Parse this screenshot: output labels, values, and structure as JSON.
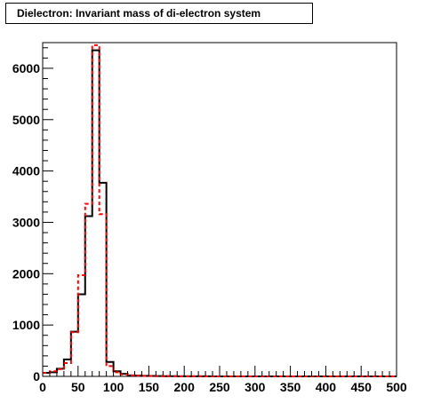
{
  "chart_data": {
    "type": "histogram",
    "title": "Dielectron: Invariant mass of di-electron system",
    "xlabel": "",
    "ylabel": "",
    "xlim": [
      0,
      500
    ],
    "ylim": [
      0,
      6500
    ],
    "bin_width": 10,
    "x_ticks": [
      0,
      50,
      100,
      150,
      200,
      250,
      300,
      350,
      400,
      450,
      500
    ],
    "y_ticks": [
      0,
      1000,
      2000,
      3000,
      4000,
      5000,
      6000
    ],
    "grid": false,
    "series": [
      {
        "style": "solid",
        "color": "#000000",
        "values": [
          70,
          80,
          150,
          330,
          870,
          1600,
          3120,
          6350,
          3770,
          280,
          100,
          50,
          20,
          15,
          10,
          8,
          6,
          5,
          4,
          3,
          3,
          2,
          2,
          2,
          1,
          1,
          1,
          1,
          1,
          1,
          1,
          1,
          1,
          1,
          1,
          0,
          0,
          0,
          0,
          0,
          0,
          0,
          0,
          0,
          0,
          0,
          0,
          0,
          0,
          0
        ]
      },
      {
        "style": "dashed",
        "color": "#ff0000",
        "values": [
          70,
          100,
          140,
          260,
          860,
          1970,
          3360,
          6450,
          3160,
          200,
          80,
          40,
          20,
          12,
          8,
          6,
          5,
          4,
          3,
          3,
          2,
          2,
          2,
          1,
          1,
          1,
          1,
          1,
          1,
          1,
          1,
          1,
          1,
          1,
          1,
          0,
          0,
          0,
          0,
          0,
          0,
          0,
          0,
          0,
          0,
          0,
          0,
          0,
          0,
          0
        ]
      }
    ]
  }
}
